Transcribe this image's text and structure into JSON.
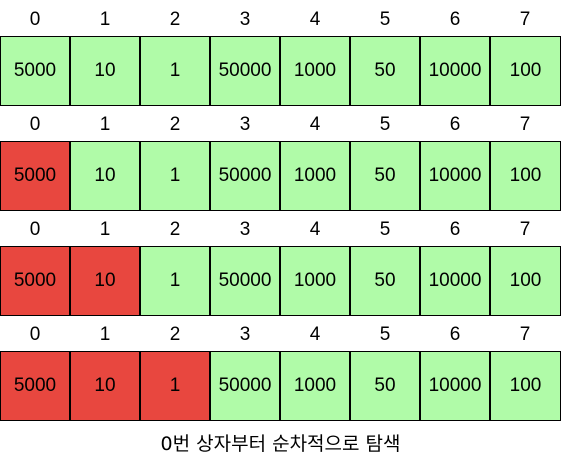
{
  "diagram": {
    "indices": [
      "0",
      "1",
      "2",
      "3",
      "4",
      "5",
      "6",
      "7"
    ],
    "values": [
      "5000",
      "10",
      "1",
      "50000",
      "1000",
      "50",
      "10000",
      "100"
    ],
    "steps": [
      {
        "visited_count": 0
      },
      {
        "visited_count": 1
      },
      {
        "visited_count": 2
      },
      {
        "visited_count": 3
      }
    ],
    "colors": {
      "unvisited": "#b0fba8",
      "visited": "#e8473f",
      "border": "#000000"
    }
  },
  "caption": "0번 상자부터 순차적으로 탐색"
}
